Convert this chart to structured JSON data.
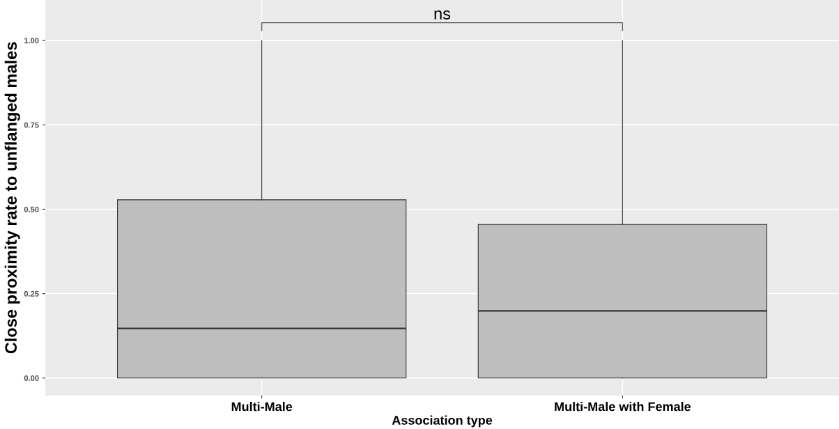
{
  "chart_data": {
    "type": "box",
    "xlabel": "Association type",
    "ylabel": "Close proximity rate to unflanged males",
    "categories": [
      "Multi-Male",
      "Multi-Male with Female"
    ],
    "boxes": [
      {
        "low": 0,
        "q1": 0,
        "median": 0.147,
        "q3": 0.528,
        "high": 1.0
      },
      {
        "low": 0,
        "q1": 0,
        "median": 0.199,
        "q3": 0.455,
        "high": 1.0
      }
    ],
    "color": "#bebebe",
    "ylim": [
      -0.052,
      1.12
    ],
    "yticks": [
      {
        "value": 0,
        "label": "0.00"
      },
      {
        "value": 0.25,
        "label": "0.25"
      },
      {
        "value": 0.5,
        "label": "0.50"
      },
      {
        "value": 0.75,
        "label": "0.75"
      },
      {
        "value": 1.0,
        "label": "1.00"
      }
    ],
    "grid": true,
    "annotations": [
      "ns"
    ]
  }
}
